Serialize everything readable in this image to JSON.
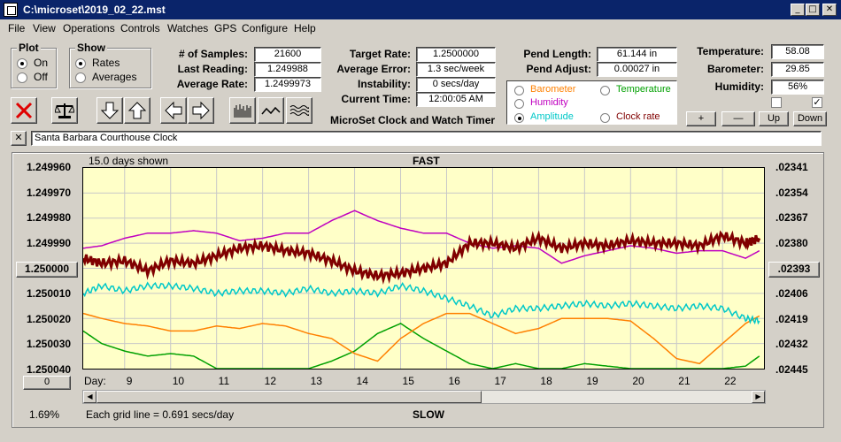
{
  "window": {
    "title": "C:\\microset\\2019_02_22.mst"
  },
  "menu": [
    "File",
    "View",
    "Operations",
    "Controls",
    "Watches",
    "GPS",
    "Configure",
    "Help"
  ],
  "plot_group": {
    "title": "Plot",
    "on": "On",
    "off": "Off",
    "selected": "On"
  },
  "show_group": {
    "title": "Show",
    "rates": "Rates",
    "averages": "Averages",
    "selected": "Rates"
  },
  "stats": {
    "samples_label": "# of Samples:",
    "samples": "21600",
    "last_label": "Last Reading:",
    "last": "1.249988",
    "avg_label": "Average Rate:",
    "avg": "1.2499973",
    "target_label": "Target Rate:",
    "target": "1.2500000",
    "avgerr_label": "Average Error:",
    "avgerr": "1.3 sec/week",
    "instab_label": "Instability:",
    "instab": "0 secs/day",
    "time_label": "Current Time:",
    "time": "12:00:05 AM",
    "pendlen_label": "Pend Length:",
    "pendlen": "61.144 in",
    "pendadj_label": "Pend Adjust:",
    "pendadj": "0.00027 in",
    "temp_label": "Temperature:",
    "temp": "58.08",
    "baro_label": "Barometer:",
    "baro": "29.85",
    "hum_label": "Humidity:",
    "hum": "56%"
  },
  "app_caption": "MicroSet Clock and Watch Timer",
  "sensor_options": {
    "barometer": "Barometer",
    "temperature": "Temperature",
    "humidity": "Humidity",
    "amplitude": "Amplitude",
    "clock_rate": "Clock rate",
    "selected": "Amplitude"
  },
  "sensor_colors": {
    "barometer": "#ff8000",
    "temperature": "#00a000",
    "humidity": "#c000c0",
    "amplitude": "#00c8c8",
    "clock_rate": "#800000"
  },
  "buttons": {
    "plus": "+",
    "minus": "—",
    "up": "Up",
    "down": "Down",
    "close_x": "✕"
  },
  "checkboxes": {
    "left_checked": false,
    "right_checked": true
  },
  "clock_name": "Santa Barbara Courthouse Clock",
  "chart": {
    "days_shown": "15.0 days shown",
    "fast": "FAST",
    "slow": "SLOW",
    "grid_note": "Each grid line = 0.691 secs/day",
    "left_btn": "1.250000",
    "right_btn": ".02393",
    "bottom_left_btn": "0",
    "percent": "1.69%",
    "day_label": "Day:"
  },
  "chart_data": {
    "type": "line",
    "xlabel": "Day:",
    "x_ticks": [
      "9",
      "10",
      "11",
      "12",
      "13",
      "14",
      "15",
      "16",
      "17",
      "18",
      "19",
      "20",
      "21",
      "22"
    ],
    "y_left_ticks": [
      "1.249960",
      "1.249970",
      "1.249980",
      "1.249990",
      "1.250000",
      "1.250010",
      "1.250020",
      "1.250030",
      "1.250040"
    ],
    "y_right_ticks": [
      ".02341",
      ".02354",
      ".02367",
      ".02380",
      ".02393",
      ".02406",
      ".02419",
      ".02432",
      ".02445"
    ],
    "x_range": [
      8.1,
      22.9
    ],
    "grid": true,
    "series": [
      {
        "name": "Clock rate",
        "color": "#800000",
        "x": [
          8.1,
          8.5,
          9,
          9.5,
          10,
          10.5,
          11,
          11.5,
          12,
          12.5,
          13,
          13.5,
          14,
          14.5,
          15,
          15.5,
          16,
          16.5,
          17,
          17.5,
          18,
          18.5,
          19,
          19.5,
          20,
          20.5,
          21,
          21.5,
          22,
          22.5,
          22.8
        ],
        "y": [
          1.249996,
          1.249998,
          1.249997,
          1.250001,
          1.249997,
          1.249998,
          1.249995,
          1.249992,
          1.249991,
          1.249993,
          1.249994,
          1.249997,
          1.250001,
          1.250003,
          1.250002,
          1.25,
          1.249998,
          1.24999,
          1.24999,
          1.249992,
          1.249988,
          1.249992,
          1.24999,
          1.249991,
          1.249989,
          1.24999,
          1.24999,
          1.249991,
          1.249987,
          1.24999,
          1.249988
        ]
      },
      {
        "name": "Humidity",
        "color": "#c000c0",
        "x": [
          8.1,
          8.5,
          9,
          9.5,
          10,
          10.5,
          11,
          11.5,
          12,
          12.5,
          13,
          13.5,
          14,
          14.5,
          15,
          15.5,
          16,
          16.5,
          17,
          17.5,
          18,
          18.5,
          19,
          19.5,
          20,
          20.5,
          21,
          21.5,
          22,
          22.5,
          22.8
        ],
        "y": [
          1.249992,
          1.249991,
          1.249988,
          1.249986,
          1.249986,
          1.249985,
          1.249986,
          1.249989,
          1.249988,
          1.249986,
          1.249986,
          1.249981,
          1.249977,
          1.249981,
          1.249984,
          1.249986,
          1.249986,
          1.24999,
          1.249992,
          1.249991,
          1.249992,
          1.249998,
          1.249995,
          1.249993,
          1.249991,
          1.249992,
          1.249994,
          1.249993,
          1.249993,
          1.249996,
          1.249993
        ]
      },
      {
        "name": "Amplitude",
        "color": "#00c8c8",
        "x": [
          8.1,
          8.5,
          9,
          9.5,
          10,
          10.5,
          11,
          11.5,
          12,
          12.5,
          13,
          13.5,
          14,
          14.5,
          15,
          15.5,
          16,
          16.5,
          17,
          17.5,
          18,
          18.5,
          19,
          19.5,
          20,
          20.5,
          21,
          21.5,
          22,
          22.5,
          22.8
        ],
        "y": [
          1.25001,
          1.250007,
          1.250009,
          1.250007,
          1.250007,
          1.250008,
          1.25001,
          1.250009,
          1.250009,
          1.25001,
          1.250008,
          1.25001,
          1.250009,
          1.25001,
          1.250007,
          1.250009,
          1.250012,
          1.250015,
          1.250019,
          1.250016,
          1.250016,
          1.250015,
          1.250014,
          1.250015,
          1.250014,
          1.250015,
          1.250016,
          1.250015,
          1.250016,
          1.25002,
          1.250021
        ]
      },
      {
        "name": "Barometer",
        "color": "#ff8000",
        "x": [
          8.1,
          8.5,
          9,
          9.5,
          10,
          10.5,
          11,
          11.5,
          12,
          12.5,
          13,
          13.5,
          14,
          14.5,
          15,
          15.5,
          16,
          16.5,
          17,
          17.5,
          18,
          18.5,
          19,
          19.5,
          20,
          20.5,
          21,
          21.5,
          22,
          22.5,
          22.8
        ],
        "y": [
          1.250018,
          1.25002,
          1.250022,
          1.250023,
          1.250025,
          1.250025,
          1.250023,
          1.250024,
          1.250022,
          1.250023,
          1.250026,
          1.250028,
          1.250034,
          1.250037,
          1.250028,
          1.250022,
          1.250018,
          1.250018,
          1.250022,
          1.250026,
          1.250024,
          1.25002,
          1.25002,
          1.25002,
          1.250021,
          1.250028,
          1.250036,
          1.250038,
          1.25003,
          1.250022,
          1.250019
        ]
      },
      {
        "name": "Temperature",
        "color": "#00a000",
        "x": [
          8.1,
          8.5,
          9,
          9.5,
          10,
          10.5,
          11,
          11.5,
          12,
          12.5,
          13,
          13.5,
          14,
          14.5,
          15,
          15.5,
          16,
          16.5,
          17,
          17.5,
          18,
          18.5,
          19,
          19.5,
          20,
          20.5,
          21,
          21.5,
          22,
          22.5,
          22.8
        ],
        "y": [
          1.250025,
          1.25003,
          1.250033,
          1.250035,
          1.250034,
          1.250035,
          1.25004,
          1.25004,
          1.25004,
          1.25004,
          1.25004,
          1.250037,
          1.250033,
          1.250026,
          1.250022,
          1.250028,
          1.250033,
          1.250038,
          1.25004,
          1.250038,
          1.25004,
          1.25004,
          1.250038,
          1.250039,
          1.25004,
          1.25004,
          1.25004,
          1.25004,
          1.25004,
          1.250039,
          1.250035
        ]
      }
    ]
  }
}
